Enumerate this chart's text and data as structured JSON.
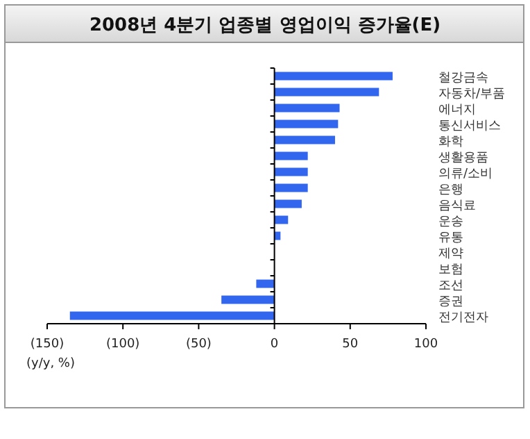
{
  "chart_data": {
    "type": "bar",
    "orientation": "horizontal",
    "title": "2008년 4분기 업종별 영업이익 증가율(E)",
    "xlabel": "(y/y, %)",
    "categories": [
      "철강금속",
      "자동차/부품",
      "에너지",
      "통신서비스",
      "화학",
      "생활용품",
      "의류/소비",
      "은행",
      "음식료",
      "운송",
      "유통",
      "제약",
      "보험",
      "조선",
      "증권",
      "전기전자"
    ],
    "values": [
      78,
      69,
      43,
      42,
      40,
      22,
      22,
      22,
      18,
      9,
      4,
      0,
      0,
      -12,
      -35,
      -135
    ],
    "color": "#3366ee",
    "xlim": [
      -150,
      100
    ],
    "xticks": [
      {
        "value": -150,
        "label": "(150)"
      },
      {
        "value": -100,
        "label": "(100)"
      },
      {
        "value": -50,
        "label": "(50)"
      },
      0,
      50,
      100
    ]
  }
}
